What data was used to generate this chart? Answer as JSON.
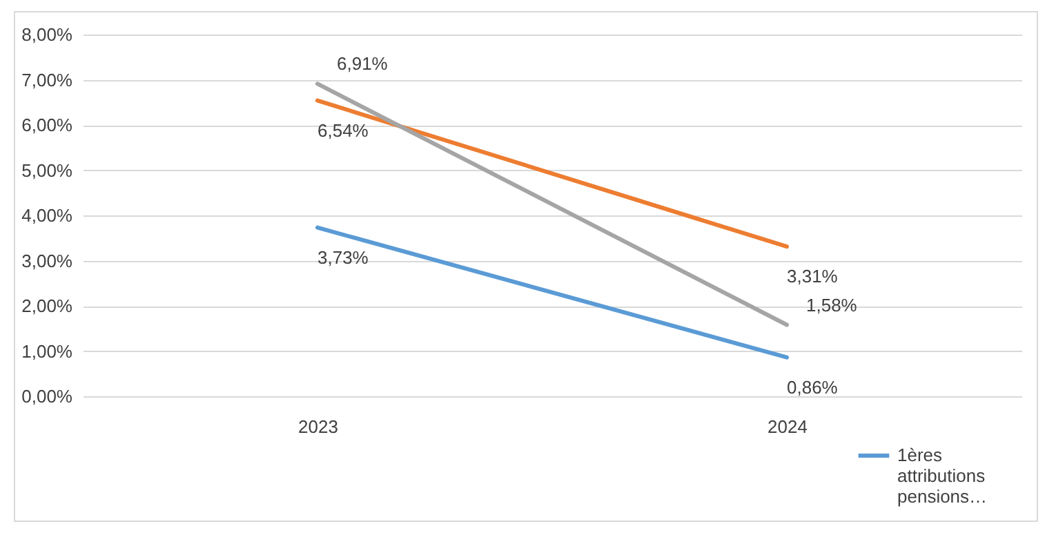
{
  "chart_data": {
    "type": "line",
    "categories": [
      "2023",
      "2024"
    ],
    "series": [
      {
        "name": "1ères attributions pensions…",
        "color": "#5b9bd5",
        "values": [
          3.73,
          0.86
        ],
        "value_labels": [
          "3,73%",
          "0,86%"
        ]
      },
      {
        "color": "#ed7d31",
        "values": [
          6.54,
          3.31
        ],
        "value_labels": [
          "6,54%",
          "3,31%"
        ]
      },
      {
        "color": "#a5a5a5",
        "values": [
          6.91,
          1.58
        ],
        "value_labels": [
          "6,91%",
          "1,58%"
        ]
      }
    ],
    "ylim": [
      0,
      8
    ],
    "yticks": [
      {
        "value": 0,
        "label": "0,00%"
      },
      {
        "value": 1,
        "label": "1,00%"
      },
      {
        "value": 2,
        "label": "2,00%"
      },
      {
        "value": 3,
        "label": "3,00%"
      },
      {
        "value": 4,
        "label": "4,00%"
      },
      {
        "value": 5,
        "label": "5,00%"
      },
      {
        "value": 6,
        "label": "6,00%"
      },
      {
        "value": 7,
        "label": "7,00%"
      },
      {
        "value": 8,
        "label": "8,00%"
      }
    ],
    "grid": "y",
    "legend": "bottom right",
    "marker": "none",
    "line_style": "solid"
  }
}
